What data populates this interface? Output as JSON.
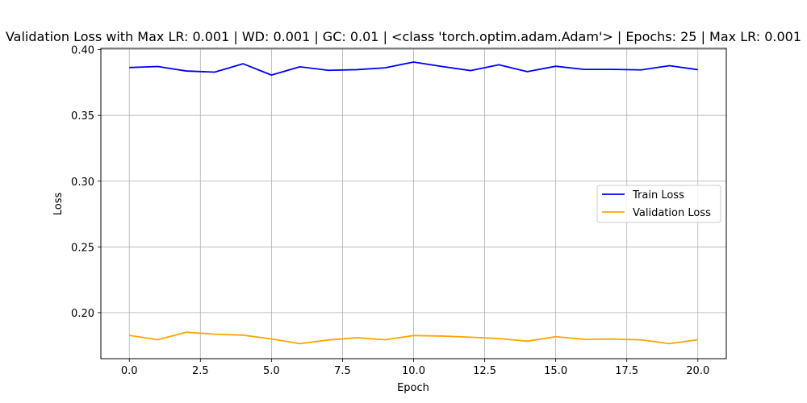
{
  "chart_data": {
    "type": "line",
    "title": "Validation Loss with Max LR: 0.001 | WD: 0.001 | GC: 0.01 | <class 'torch.optim.adam.Adam'> | Epochs: 25 | Max LR: 0.001",
    "xlabel": "Epoch",
    "ylabel": "Loss",
    "xlim": [
      -1.0,
      21.0
    ],
    "ylim": [
      0.165,
      0.401
    ],
    "xticks": [
      "0.0",
      "2.5",
      "5.0",
      "7.5",
      "10.0",
      "12.5",
      "15.0",
      "17.5",
      "20.0"
    ],
    "yticks": [
      "0.20",
      "0.25",
      "0.30",
      "0.35",
      "0.40"
    ],
    "grid": true,
    "legend_position": "center-right",
    "x": [
      0,
      1,
      2,
      3,
      4,
      5,
      6,
      7,
      8,
      9,
      10,
      11,
      12,
      13,
      14,
      15,
      16,
      17,
      18,
      19,
      20
    ],
    "series": [
      {
        "name": "Train Loss",
        "color": "#0000ff",
        "values": [
          0.3864,
          0.3872,
          0.3838,
          0.3829,
          0.3893,
          0.3807,
          0.387,
          0.3843,
          0.3848,
          0.3862,
          0.3906,
          0.3872,
          0.3841,
          0.3885,
          0.3833,
          0.3874,
          0.385,
          0.385,
          0.3846,
          0.3878,
          0.3848
        ]
      },
      {
        "name": "Validation Loss",
        "color": "#ffa500",
        "values": [
          0.1827,
          0.1794,
          0.1851,
          0.1836,
          0.1829,
          0.18,
          0.1764,
          0.1792,
          0.1809,
          0.1794,
          0.1826,
          0.1822,
          0.1813,
          0.1803,
          0.1783,
          0.1817,
          0.1797,
          0.1799,
          0.1793,
          0.1764,
          0.1794
        ]
      }
    ]
  }
}
